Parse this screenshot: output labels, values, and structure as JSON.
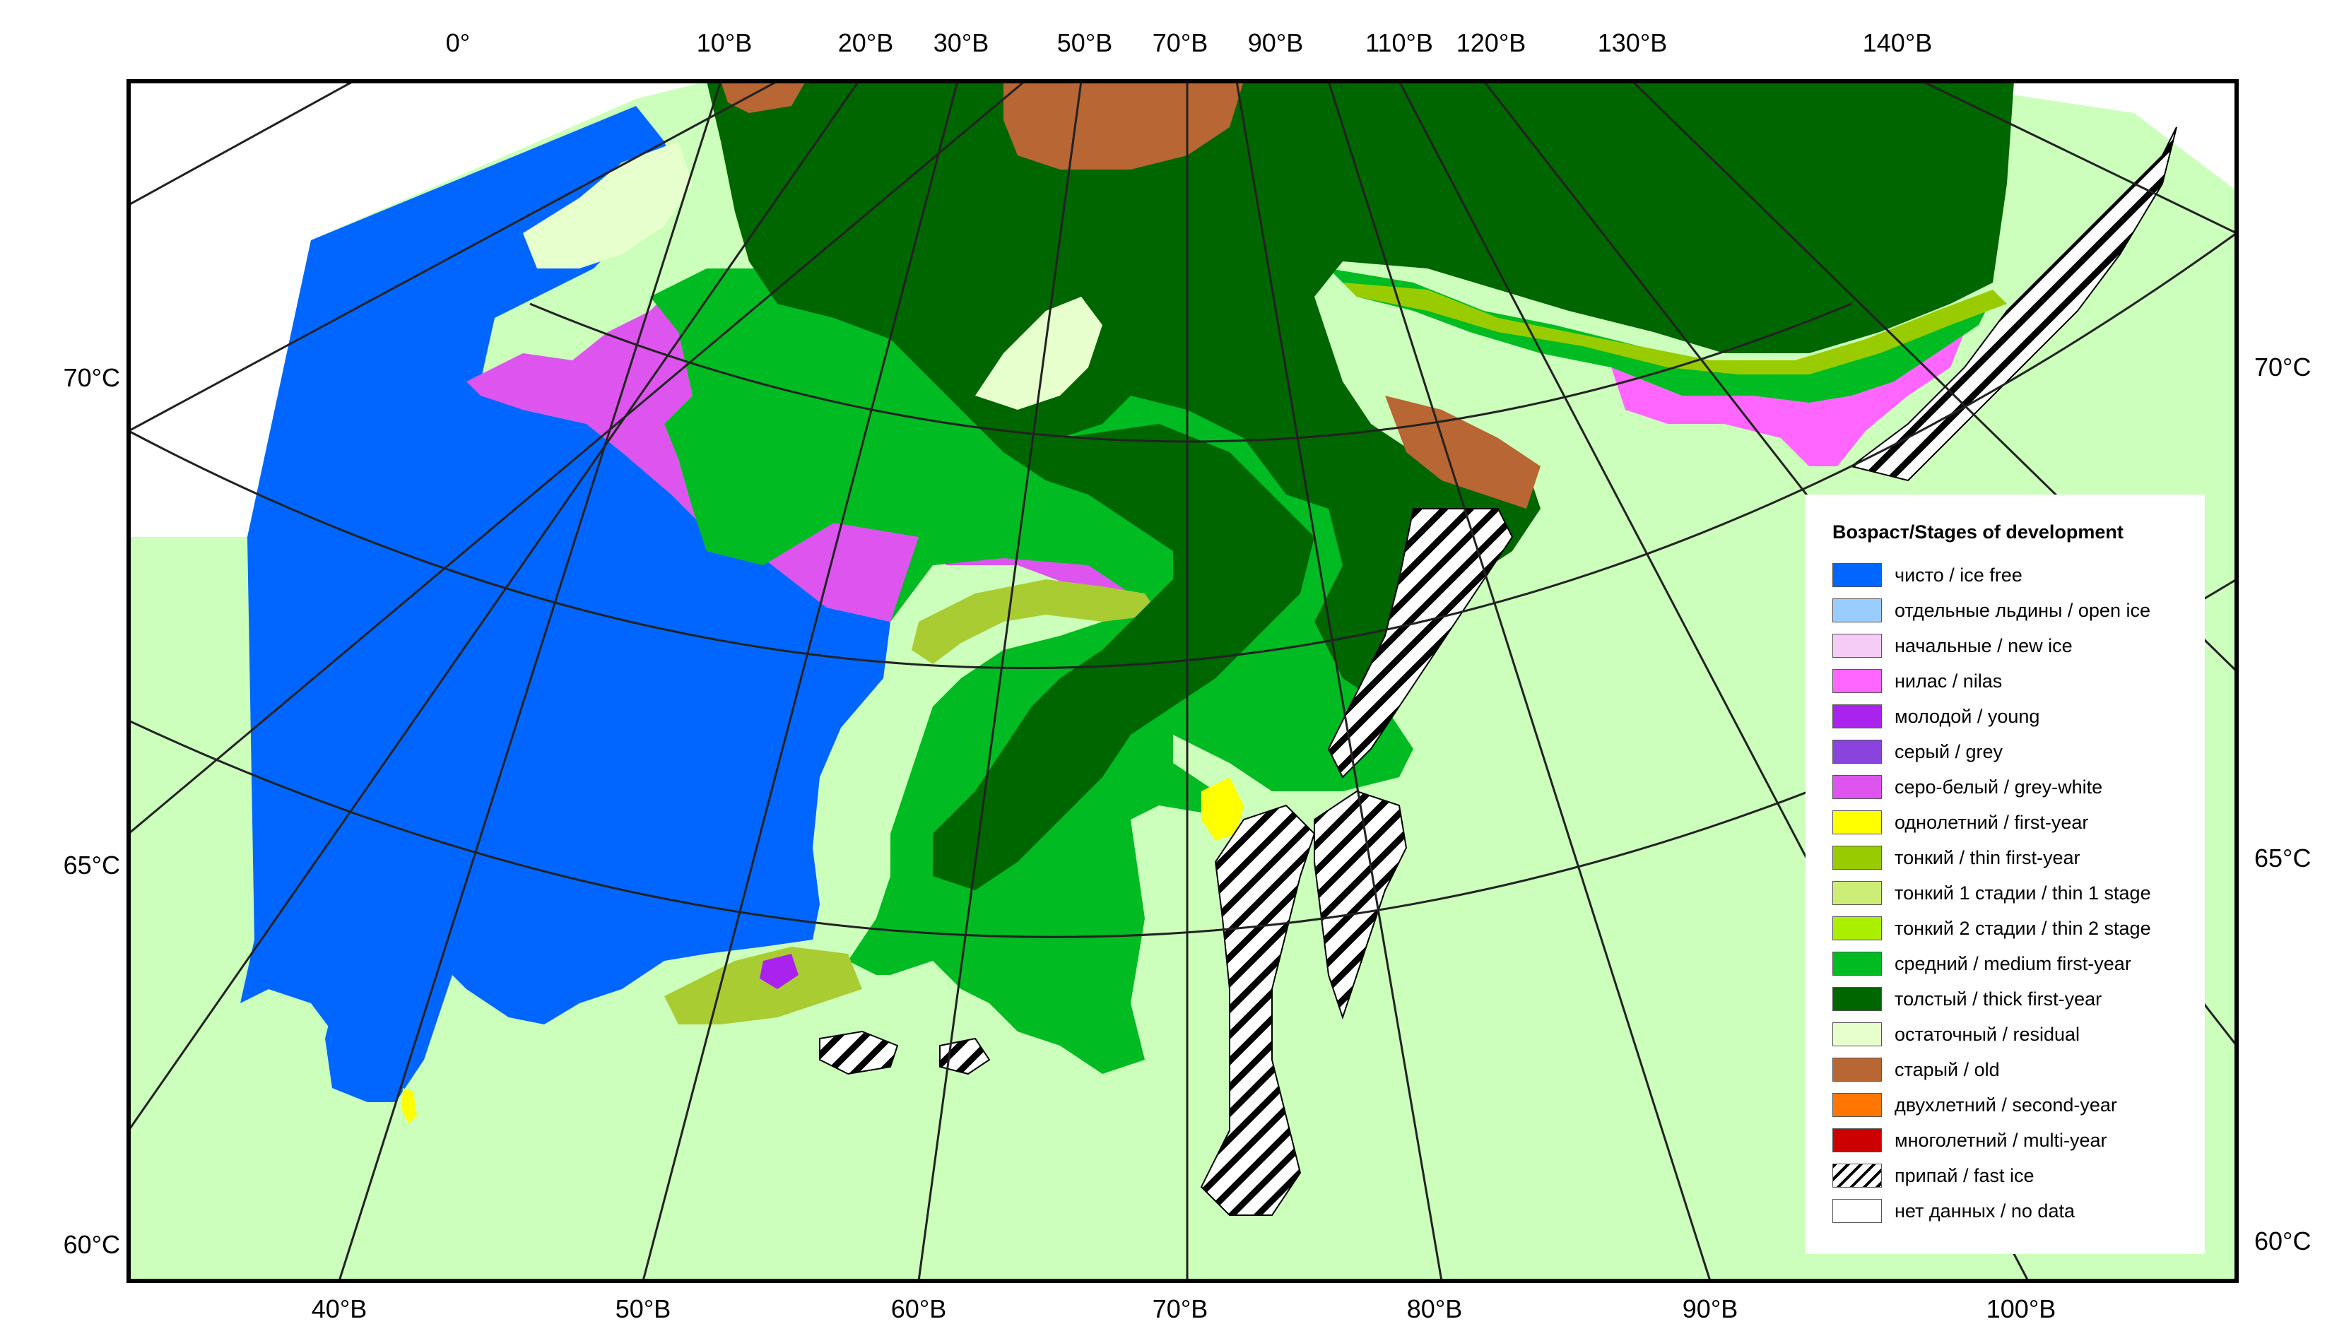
{
  "map": {
    "top_ticks": [
      "0°",
      "10°В",
      "20°В",
      "30°В",
      "50°В",
      "70°В",
      "90°В",
      "110°В",
      "120°В",
      "130°В",
      "140°В"
    ],
    "bottom_ticks": [
      "40°В",
      "50°В",
      "60°В",
      "70°В",
      "80°В",
      "90°В",
      "100°В"
    ],
    "left_ticks": [
      "70°С",
      "65°С",
      "60°С"
    ],
    "right_ticks": [
      "70°С",
      "65°С",
      "60°С"
    ]
  },
  "legend": {
    "title": "Возраст/Stages of development",
    "items": [
      {
        "label": "чисто / ice free",
        "color": "#0066ff"
      },
      {
        "label": "отдельные льдины / open ice",
        "color": "#99ccff"
      },
      {
        "label": "начальные / new ice",
        "color": "#f5ccf5"
      },
      {
        "label": "нилас / nilas",
        "color": "#ff66ff"
      },
      {
        "label": "молодой / young",
        "color": "#aa22ee"
      },
      {
        "label": "серый / grey",
        "color": "#8844dd"
      },
      {
        "label": "серо-белый / grey-white",
        "color": "#dd55ee"
      },
      {
        "label": "однолетний / first-year",
        "color": "#ffff00"
      },
      {
        "label": "тонкий / thin first-year",
        "color": "#99cc00"
      },
      {
        "label": "тонкий 1 стадии / thin 1 stage",
        "color": "#ccee77"
      },
      {
        "label": "тонкий 2 стадии / thin 2 stage",
        "color": "#aaee00"
      },
      {
        "label": "средний / medium first-year",
        "color": "#00bb22"
      },
      {
        "label": "толстый / thick first-year",
        "color": "#006600"
      },
      {
        "label": "остаточный / residual",
        "color": "#e6ffcc"
      },
      {
        "label": "старый / old",
        "color": "#b86633"
      },
      {
        "label": "двухлетний / second-year",
        "color": "#ff7700"
      },
      {
        "label": "многолетний / multi-year",
        "color": "#cc0000"
      },
      {
        "label": "припай / fast ice",
        "color": "hatch"
      },
      {
        "label": "нет данных / no data",
        "color": "#ffffff"
      }
    ]
  }
}
